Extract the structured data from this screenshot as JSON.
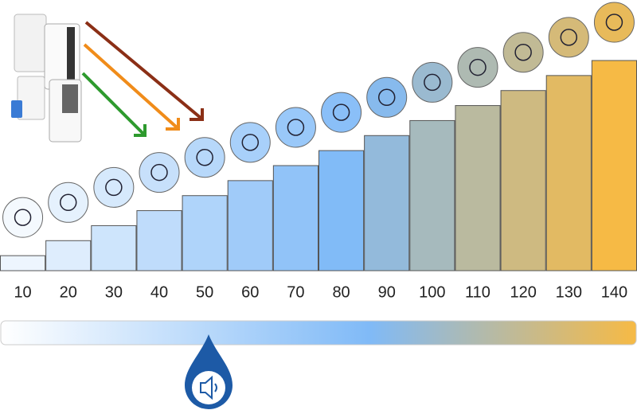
{
  "chart_data": {
    "type": "bar",
    "values": [
      10,
      20,
      30,
      40,
      50,
      60,
      70,
      80,
      90,
      100,
      110,
      120,
      130,
      140
    ],
    "gradient": [
      "#ffffff",
      "#80baf7",
      "#f6ba45"
    ]
  }
}
